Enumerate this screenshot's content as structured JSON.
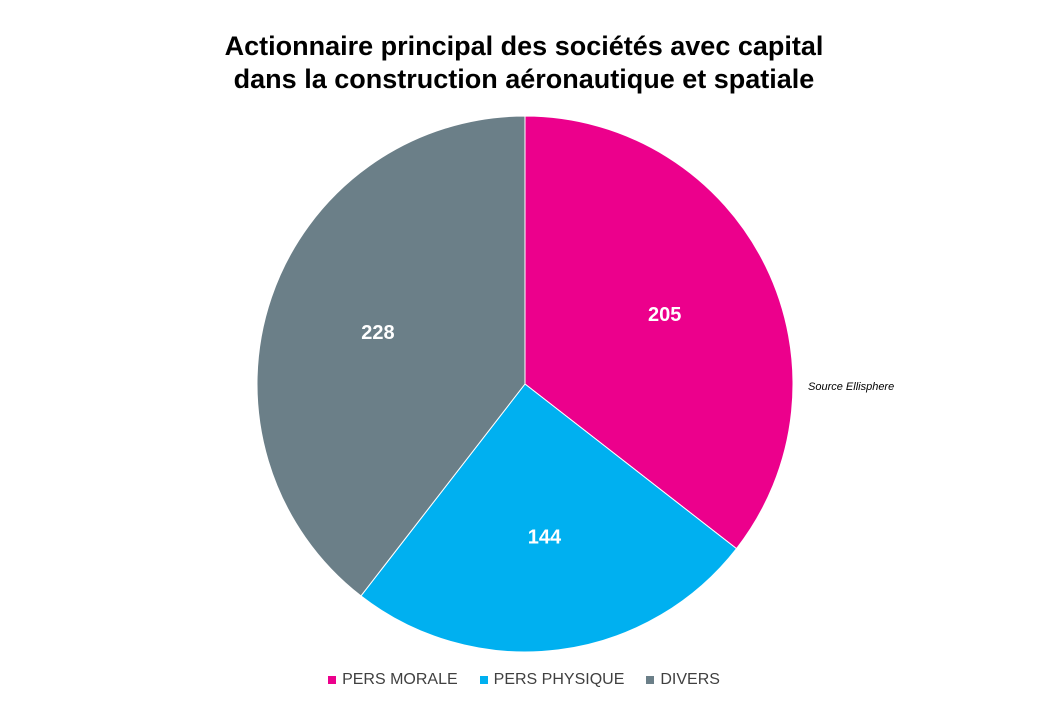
{
  "chart_data": {
    "type": "pie",
    "title_lines": [
      "Actionnaire principal des sociétés avec capital",
      "dans la construction aéronautique et spatiale"
    ],
    "categories": [
      "PERS MORALE",
      "PERS PHYSIQUE",
      "DIVERS"
    ],
    "values": [
      205,
      144,
      228
    ],
    "colors": [
      "#ec008c",
      "#00b0f0",
      "#6b7f88"
    ],
    "legend_position": "bottom",
    "annotation": "Source Ellisphere"
  }
}
